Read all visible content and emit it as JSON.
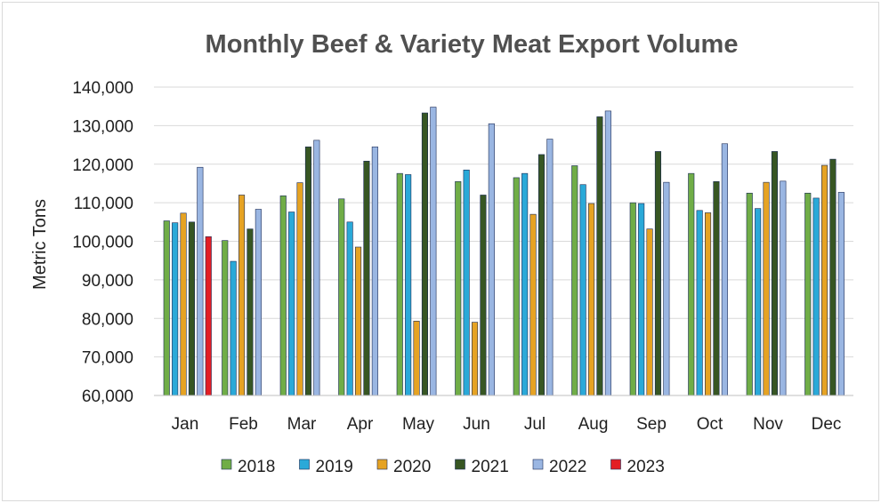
{
  "chart_data": {
    "type": "bar",
    "title": "Monthly Beef & Variety Meat Export Volume",
    "xlabel": "",
    "ylabel": "Metric Tons",
    "ylim": [
      60000,
      140000
    ],
    "yticks": [
      60000,
      70000,
      80000,
      90000,
      100000,
      110000,
      120000,
      130000,
      140000
    ],
    "ytick_labels": [
      "60,000",
      "70,000",
      "80,000",
      "90,000",
      "100,000",
      "110,000",
      "120,000",
      "130,000",
      "140,000"
    ],
    "grid": true,
    "legend_position": "bottom",
    "categories": [
      "Jan",
      "Feb",
      "Mar",
      "Apr",
      "May",
      "Jun",
      "Jul",
      "Aug",
      "Sep",
      "Oct",
      "Nov",
      "Dec"
    ],
    "series": [
      {
        "name": "2018",
        "color": "#70ad47",
        "values": [
          105300,
          100200,
          111800,
          111000,
          117600,
          115500,
          116500,
          119600,
          110000,
          117600,
          112500,
          112500
        ]
      },
      {
        "name": "2019",
        "color": "#2aa9d8",
        "values": [
          104800,
          94800,
          107600,
          105000,
          117300,
          118500,
          117600,
          114700,
          109800,
          108000,
          108500,
          111200
        ]
      },
      {
        "name": "2020",
        "color": "#e6a323",
        "values": [
          107300,
          112000,
          115200,
          98500,
          79300,
          79000,
          107000,
          109800,
          103200,
          107400,
          115300,
          119700
        ]
      },
      {
        "name": "2021",
        "color": "#375623",
        "values": [
          105000,
          103200,
          124500,
          120800,
          133300,
          112000,
          122500,
          132300,
          123300,
          115500,
          123300,
          121300
        ]
      },
      {
        "name": "2022",
        "color": "#9ab6e2",
        "values": [
          119200,
          108300,
          126200,
          124500,
          134800,
          130500,
          126500,
          133800,
          115300,
          125300,
          115600,
          112700
        ]
      },
      {
        "name": "2023",
        "color": "#e31e24",
        "values": [
          101200,
          null,
          null,
          null,
          null,
          null,
          null,
          null,
          null,
          null,
          null,
          null
        ]
      }
    ]
  }
}
